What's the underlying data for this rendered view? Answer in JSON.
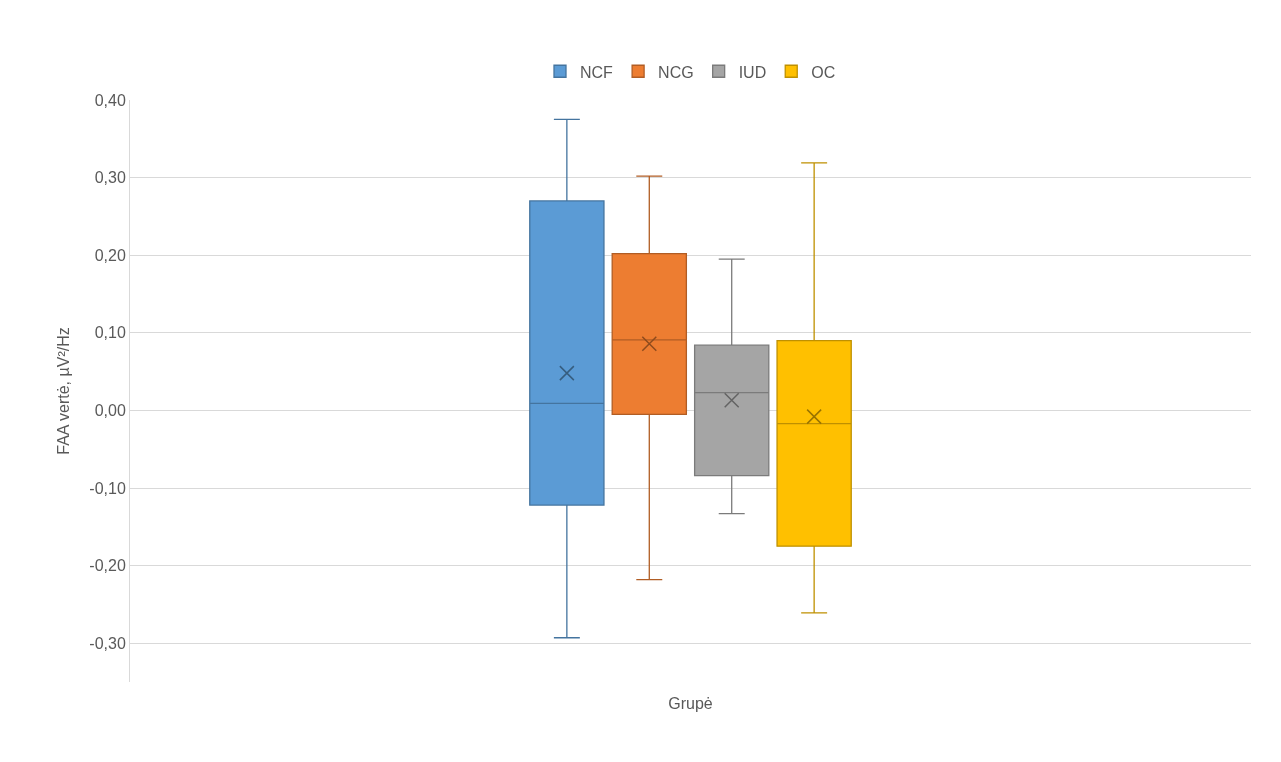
{
  "chart_data": {
    "type": "box",
    "xlabel": "Grupė",
    "ylabel": "FAA vertė, µV²/Hz",
    "categories": [
      null
    ],
    "series": [
      {
        "name": "NCF",
        "color": "#5b9bd5",
        "boxes": [
          {
            "low": -0.293,
            "q1": -0.122,
            "median": 0.009,
            "q3": 0.27,
            "high": 0.375,
            "mean": 0.048
          }
        ]
      },
      {
        "name": "NCG",
        "color": "#ed7d31",
        "boxes": [
          {
            "low": -0.218,
            "q1": -0.005,
            "median": 0.091,
            "q3": 0.202,
            "high": 0.302,
            "mean": 0.086
          }
        ]
      },
      {
        "name": "IUD",
        "color": "#a5a5a5",
        "boxes": [
          {
            "low": -0.133,
            "q1": -0.084,
            "median": 0.023,
            "q3": 0.084,
            "high": 0.195,
            "mean": 0.013
          }
        ]
      },
      {
        "name": "OC",
        "color": "#ffc000",
        "boxes": [
          {
            "low": -0.261,
            "q1": -0.175,
            "median": -0.017,
            "q3": 0.09,
            "high": 0.319,
            "mean": -0.008
          }
        ]
      }
    ],
    "ylim": [
      -0.35,
      0.4
    ],
    "yticks": [
      {
        "value": -0.3,
        "label": "-0,30"
      },
      {
        "value": -0.2,
        "label": "-0,20"
      },
      {
        "value": -0.1,
        "label": "-0,10"
      },
      {
        "value": 0,
        "label": "0,00"
      },
      {
        "value": 0.1,
        "label": "0,10"
      },
      {
        "value": 0.2,
        "label": "0,20"
      },
      {
        "value": 0.3,
        "label": "0,30"
      },
      {
        "value": 0.4,
        "label": "0,40"
      }
    ],
    "grid": "y",
    "legend": "top",
    "marker": "cross"
  }
}
